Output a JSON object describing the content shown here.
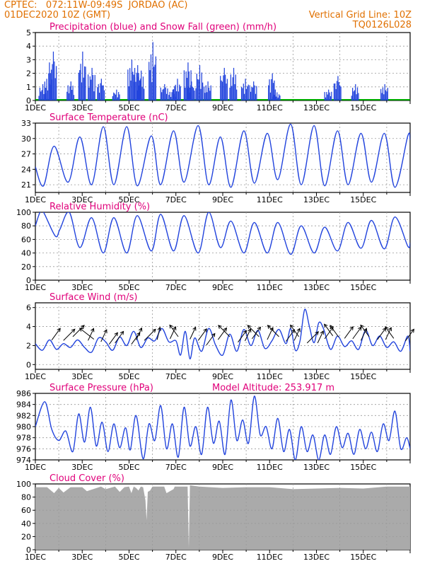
{
  "header": {
    "line1_left": "CPTEC:   072:11W-09:49S  JORDAO (AC)",
    "line2_left": "01DEC2020 10Z (GMT)",
    "line2_right": "Vertical Grid Line: 10Z",
    "line3_right": "TQ0126L028",
    "color": "#e07000"
  },
  "colors": {
    "title": "#e0007a",
    "line": "#2244dd",
    "snow": "#00aa00",
    "cloud": "#aaaaaa",
    "grid": "#999999"
  },
  "chart_data": [
    {
      "type": "bar",
      "title": "Precipitation (blue) and Snow Fall (green) (mm/h)",
      "x_labels": [
        "1DEC",
        "3DEC",
        "5DEC",
        "7DEC",
        "9DEC",
        "11DEC",
        "13DEC",
        "15DEC"
      ],
      "ylim": [
        0,
        5
      ],
      "yticks": [
        0,
        1,
        2,
        3,
        4,
        5
      ],
      "bursts": [
        {
          "day": 0.3,
          "peak": 1.2
        },
        {
          "day": 0.55,
          "peak": 2.0
        },
        {
          "day": 0.75,
          "peak": 3.6
        },
        {
          "day": 1.5,
          "peak": 1.4
        },
        {
          "day": 2.0,
          "peak": 3.6
        },
        {
          "day": 2.4,
          "peak": 2.4
        },
        {
          "day": 2.8,
          "peak": 1.6
        },
        {
          "day": 3.45,
          "peak": 0.8
        },
        {
          "day": 4.1,
          "peak": 3.0
        },
        {
          "day": 4.35,
          "peak": 2.6
        },
        {
          "day": 4.5,
          "peak": 2.2
        },
        {
          "day": 5.0,
          "peak": 4.3
        },
        {
          "day": 5.5,
          "peak": 1.2
        },
        {
          "day": 5.85,
          "peak": 0.8
        },
        {
          "day": 6.05,
          "peak": 1.6
        },
        {
          "day": 6.5,
          "peak": 2.8
        },
        {
          "day": 6.65,
          "peak": 1.4
        },
        {
          "day": 7.0,
          "peak": 2.6
        },
        {
          "day": 7.35,
          "peak": 1.4
        },
        {
          "day": 8.05,
          "peak": 2.4
        },
        {
          "day": 8.45,
          "peak": 2.4
        },
        {
          "day": 8.95,
          "peak": 1.6
        },
        {
          "day": 9.3,
          "peak": 1.4
        },
        {
          "day": 10.1,
          "peak": 2.0
        },
        {
          "day": 10.3,
          "peak": 0.6
        },
        {
          "day": 12.5,
          "peak": 0.8
        },
        {
          "day": 12.9,
          "peak": 1.8
        },
        {
          "day": 13.65,
          "peak": 1.2
        },
        {
          "day": 14.9,
          "peak": 1.2
        }
      ]
    },
    {
      "type": "line",
      "title": "Surface Temperature (nC)",
      "x_labels": [
        "1DEC",
        "3DEC",
        "5DEC",
        "7DEC",
        "9DEC",
        "11DEC",
        "13DEC",
        "15DEC"
      ],
      "ylim": [
        19.5,
        33
      ],
      "yticks": [
        21,
        24,
        27,
        30,
        33
      ],
      "x": [
        0,
        0.35,
        0.8,
        1.4,
        1.9,
        2.4,
        2.9,
        3.35,
        3.9,
        4.35,
        4.95,
        5.35,
        5.9,
        6.35,
        6.95,
        7.4,
        7.9,
        8.35,
        8.9,
        9.35,
        9.9,
        10.35,
        10.9,
        11.35,
        11.9,
        12.35,
        12.9,
        13.35,
        13.9,
        14.35,
        14.9,
        15.35,
        15.9,
        16
      ],
      "y": [
        24.5,
        20.8,
        28.5,
        21.5,
        30.3,
        21.0,
        32.3,
        21.0,
        32.3,
        20.8,
        30.5,
        21.0,
        31.5,
        21.5,
        32.5,
        21.0,
        30.3,
        20.5,
        31.5,
        21.3,
        31.0,
        22.0,
        32.8,
        21.0,
        32.5,
        20.8,
        31.5,
        21.0,
        31.0,
        21.5,
        31.0,
        20.5,
        30.5,
        29.8
      ]
    },
    {
      "type": "line",
      "title": "Relative Humidity (%)",
      "x_labels": [
        "1DEC",
        "3DEC",
        "5DEC",
        "7DEC",
        "9DEC",
        "11DEC",
        "13DEC",
        "15DEC"
      ],
      "ylim": [
        0,
        100
      ],
      "yticks": [
        0,
        20,
        40,
        60,
        80,
        100
      ],
      "x": [
        0,
        0.2,
        0.35,
        0.85,
        1.05,
        1.45,
        1.9,
        2.4,
        2.9,
        3.35,
        3.9,
        4.35,
        4.95,
        5.35,
        5.9,
        6.35,
        6.95,
        7.4,
        7.9,
        8.35,
        8.9,
        9.35,
        9.9,
        10.35,
        10.9,
        11.35,
        11.9,
        12.35,
        12.9,
        13.35,
        13.9,
        14.35,
        14.9,
        15.35,
        15.9,
        16
      ],
      "y": [
        80,
        100,
        100,
        65,
        75,
        100,
        48,
        92,
        40,
        92,
        40,
        95,
        43,
        97,
        43,
        95,
        40,
        100,
        48,
        87,
        40,
        85,
        40,
        85,
        38,
        80,
        40,
        78,
        43,
        85,
        47,
        88,
        46,
        93,
        50,
        55
      ]
    },
    {
      "type": "line",
      "title": "Surface Wind (m/s)",
      "x_labels": [
        "1DEC",
        "3DEC",
        "5DEC",
        "7DEC",
        "9DEC",
        "11DEC",
        "13DEC",
        "15DEC"
      ],
      "ylim": [
        -0.5,
        6.5
      ],
      "yticks": [
        0,
        2,
        4,
        6
      ],
      "x": [
        0,
        0.3,
        0.6,
        0.9,
        1.2,
        1.5,
        1.8,
        2.1,
        2.4,
        2.7,
        3.0,
        3.3,
        3.6,
        3.9,
        4.2,
        4.5,
        4.8,
        5.1,
        5.4,
        5.7,
        6.0,
        6.2,
        6.4,
        6.6,
        6.8,
        7.1,
        7.4,
        7.7,
        8.0,
        8.3,
        8.6,
        8.9,
        9.2,
        9.5,
        9.8,
        10.1,
        10.4,
        10.7,
        10.9,
        11.1,
        11.3,
        11.5,
        11.7,
        11.9,
        12.1,
        12.3,
        12.6,
        12.9,
        13.2,
        13.5,
        13.8,
        14.1,
        14.4,
        14.7,
        15.0,
        15.3,
        15.6,
        15.9,
        16
      ],
      "y": [
        2.2,
        1.5,
        2.6,
        1.6,
        2.2,
        1.8,
        2.6,
        1.8,
        1.3,
        2.8,
        2.4,
        1.5,
        2.9,
        2.0,
        3.5,
        1.8,
        2.8,
        2.5,
        3.8,
        2.4,
        2.5,
        1.0,
        3.5,
        0.6,
        2.8,
        1.4,
        3.8,
        2.0,
        1.0,
        3.2,
        1.4,
        3.7,
        2.0,
        3.6,
        1.7,
        2.5,
        3.7,
        2.2,
        3.8,
        1.5,
        2.5,
        5.8,
        4.0,
        2.3,
        4.4,
        3.8,
        1.6,
        3.0,
        1.9,
        2.5,
        1.6,
        3.6,
        2.0,
        3.0,
        1.8,
        2.4,
        1.4,
        3.0,
        1.4
      ],
      "arrows": [
        [
          0.7,
          0.5,
          3
        ],
        [
          1.2,
          0.6,
          4
        ],
        [
          1.6,
          -0.3,
          4
        ],
        [
          2.25,
          0.6,
          2
        ],
        [
          2.5,
          0.3,
          -5
        ],
        [
          2.8,
          0.9,
          2
        ],
        [
          3.15,
          1.5,
          3
        ],
        [
          3.4,
          1.2,
          3
        ],
        [
          4.1,
          1.5,
          3
        ],
        [
          4.3,
          0.5,
          2
        ],
        [
          4.65,
          0.6,
          4
        ],
        [
          5.2,
          0.4,
          1
        ],
        [
          5.75,
          0.2,
          2
        ],
        [
          6.1,
          -0.3,
          -3
        ],
        [
          6.6,
          0.3,
          2
        ],
        [
          6.95,
          0.6,
          3
        ],
        [
          7.3,
          1.7,
          3
        ],
        [
          7.8,
          0.4,
          3
        ],
        [
          8.3,
          -0.3,
          -4
        ],
        [
          8.65,
          1.0,
          3
        ],
        [
          8.95,
          0.7,
          2
        ],
        [
          9.25,
          0.2,
          3
        ],
        [
          9.55,
          -0.3,
          -4
        ],
        [
          9.9,
          0.4,
          2
        ],
        [
          10.4,
          -0.3,
          -4
        ],
        [
          10.7,
          0.8,
          3
        ],
        [
          11.05,
          0.6,
          2
        ],
        [
          11.25,
          -0.3,
          -3
        ],
        [
          11.6,
          1.2,
          4
        ],
        [
          12.05,
          1.2,
          2
        ],
        [
          12.35,
          0.2,
          3
        ],
        [
          12.7,
          -0.5,
          -3
        ],
        [
          12.95,
          -0.2,
          -3
        ],
        [
          13.2,
          0.1,
          3
        ],
        [
          13.55,
          0.2,
          3
        ],
        [
          13.9,
          0.6,
          2
        ],
        [
          14.25,
          -0.3,
          -3
        ],
        [
          14.6,
          0.4,
          3
        ],
        [
          14.95,
          0.4,
          2
        ],
        [
          15.3,
          0.1,
          -3
        ],
        [
          15.8,
          0.7,
          3
        ]
      ]
    },
    {
      "type": "line",
      "title": "Surface Pressure (hPa)",
      "subtitle": "Model Altitude: 253.917 m",
      "x_labels": [
        "1DEC",
        "3DEC",
        "5DEC",
        "7DEC",
        "9DEC",
        "11DEC",
        "13DEC",
        "15DEC"
      ],
      "ylim": [
        974,
        986
      ],
      "yticks": [
        974,
        976,
        978,
        980,
        982,
        984,
        986
      ],
      "x": [
        0,
        0.4,
        0.7,
        1.0,
        1.3,
        1.6,
        1.85,
        2.1,
        2.35,
        2.6,
        2.85,
        3.1,
        3.35,
        3.6,
        3.85,
        4.05,
        4.3,
        4.6,
        4.85,
        5.1,
        5.35,
        5.6,
        5.85,
        6.1,
        6.35,
        6.6,
        6.85,
        7.1,
        7.35,
        7.6,
        7.85,
        8.1,
        8.35,
        8.6,
        8.85,
        9.1,
        9.35,
        9.6,
        9.85,
        10.1,
        10.35,
        10.6,
        10.85,
        11.1,
        11.35,
        11.6,
        11.85,
        12.1,
        12.35,
        12.6,
        12.85,
        13.1,
        13.35,
        13.6,
        13.85,
        14.1,
        14.35,
        14.6,
        14.85,
        15.1,
        15.35,
        15.6,
        15.85,
        16
      ],
      "y": [
        980,
        984.5,
        979.5,
        977.5,
        979.2,
        975.5,
        982.3,
        977.2,
        983.5,
        976.5,
        980.8,
        975.5,
        980.5,
        976.2,
        979.8,
        975.8,
        982.0,
        974.2,
        980.5,
        977.5,
        983.8,
        976.0,
        980.5,
        974.5,
        983.5,
        976.5,
        980.0,
        975.0,
        983.5,
        977.0,
        981.0,
        975.0,
        984.8,
        977.5,
        981.2,
        977.0,
        985.5,
        978.5,
        980.0,
        976.0,
        981.5,
        975.5,
        979.5,
        974.0,
        980.0,
        975.5,
        978.5,
        974.0,
        978.5,
        975.0,
        980.0,
        976.2,
        978.8,
        975.0,
        979.5,
        976.0,
        979.0,
        975.5,
        980.5,
        977.5,
        982.8,
        976.0,
        978.0,
        976.0
      ]
    },
    {
      "type": "area",
      "title": "Cloud Cover (%)",
      "x_labels": [
        "1DEC",
        "3DEC",
        "5DEC",
        "7DEC",
        "9DEC",
        "11DEC",
        "13DEC",
        "15DEC"
      ],
      "ylim": [
        0,
        100
      ],
      "yticks": [
        0,
        20,
        40,
        60,
        80,
        100
      ],
      "x": [
        0,
        0.5,
        0.8,
        1.0,
        1.2,
        1.5,
        2.0,
        2.2,
        2.8,
        3.0,
        3.4,
        3.6,
        3.8,
        4.0,
        4.1,
        4.2,
        4.3,
        4.4,
        4.5,
        4.6,
        4.7,
        4.75,
        4.8,
        4.9,
        5.0,
        5.5,
        5.6,
        5.9,
        5.95,
        6.0,
        6.5,
        6.55,
        6.6,
        7.0,
        8.0,
        9.0,
        10.0,
        11.0,
        12.0,
        13.0,
        14.0,
        15.0,
        16.0
      ],
      "y": [
        95,
        95,
        86,
        94,
        87,
        95,
        95,
        89,
        96,
        92,
        96,
        88,
        95,
        96,
        86,
        96,
        94,
        90,
        96,
        95,
        75,
        45,
        88,
        90,
        96,
        96,
        86,
        92,
        96,
        96,
        96,
        3,
        98,
        96,
        94,
        95,
        95,
        92,
        93,
        94,
        93,
        96,
        96
      ]
    }
  ]
}
